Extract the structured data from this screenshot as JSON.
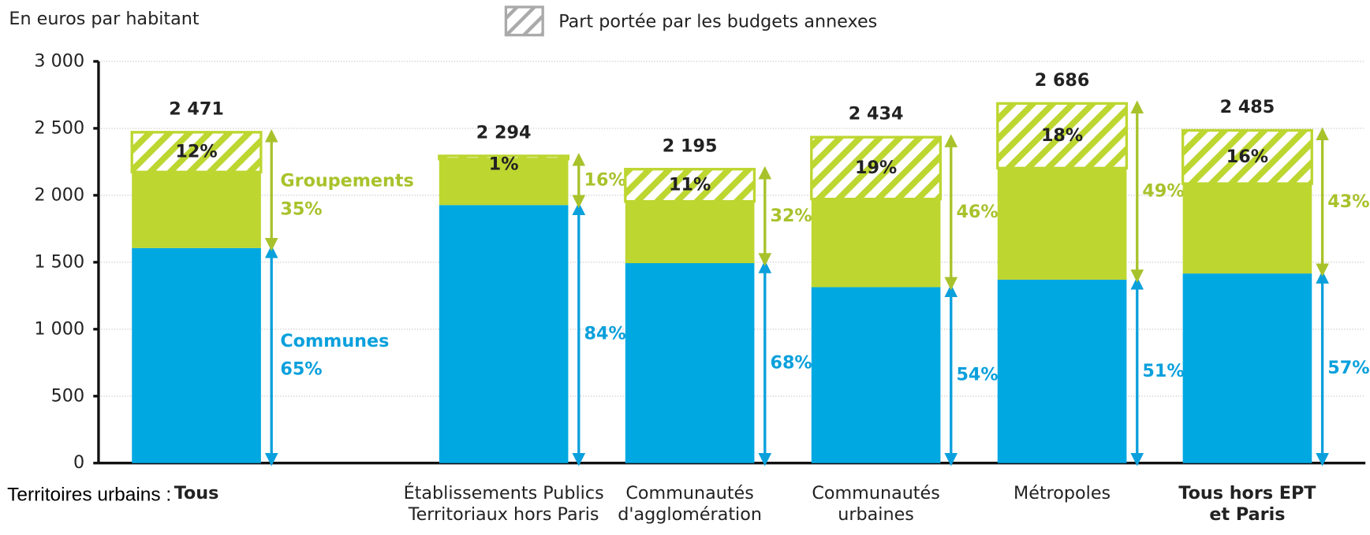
{
  "chart_data": {
    "type": "stacked-bar",
    "ylabel": "En euros par habitant",
    "xlabel": "Territoires urbains :",
    "categories": [
      [
        "Tous"
      ],
      [
        "Établissements Publics",
        "Territoriaux hors Paris"
      ],
      [
        "Communautés",
        "d'agglomération"
      ],
      [
        "Communautés",
        "urbaines"
      ],
      [
        "Métropoles"
      ],
      [
        "Tous hors EPT",
        "et Paris"
      ]
    ],
    "emphasis": [
      true,
      false,
      false,
      false,
      false,
      true
    ],
    "ylim": [
      0,
      3000
    ],
    "yticks": [
      0,
      500,
      {
        "value": 1000,
        "label": "1 000"
      },
      {
        "value": 1500,
        "label": "1 500"
      },
      {
        "value": 2000,
        "label": "2 000"
      },
      {
        "value": 2500,
        "label": "2 500"
      },
      {
        "value": 3000,
        "label": "3 000"
      }
    ],
    "grid": true,
    "series": [
      {
        "name": "Communes",
        "color": "#00a8e1",
        "values": [
          1606,
          1927,
          1493,
          1314,
          1370,
          1416
        ],
        "share": {
          "values": [
            65,
            84,
            68,
            54,
            51,
            57
          ],
          "value_labels": [
            "65%",
            "84%",
            "68%",
            "54%",
            "51%",
            "57%"
          ]
        }
      },
      {
        "name": "Groupements",
        "color": "#bdd630",
        "values": [
          568,
          344,
          461,
          658,
          833,
          671
        ],
        "share": {
          "values": [
            35,
            16,
            32,
            46,
            49,
            43
          ],
          "value_labels": [
            "35%",
            "16%",
            "32%",
            "46%",
            "49%",
            "43%"
          ]
        }
      },
      {
        "name": "Part portée par les budgets annexes",
        "color": "#bdd630",
        "pattern": "hatch",
        "values": [
          297,
          23,
          241,
          462,
          483,
          398
        ],
        "share": {
          "values": [
            12,
            1,
            11,
            19,
            18,
            16
          ],
          "value_labels": [
            "12%",
            "1%",
            "11%",
            "19%",
            "18%",
            "16%"
          ]
        }
      }
    ],
    "totals": {
      "values": [
        2471,
        2294,
        2195,
        2434,
        2686,
        2485
      ],
      "value_labels": [
        "2 471",
        "2 294",
        "2 195",
        "2 434",
        "2 686",
        "2 485"
      ]
    }
  }
}
